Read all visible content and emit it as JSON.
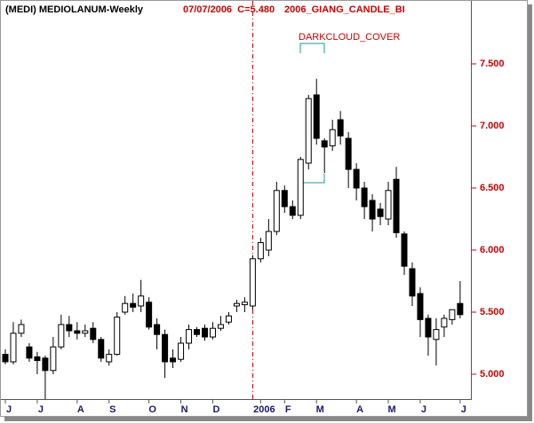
{
  "chart_data": {
    "type": "candlestick",
    "title": "(MEDI) MEDIOLANUM-Weekly",
    "info": "07/07/2006  C=5.480",
    "study": "2006_GIANG_CANDLE_BI",
    "annotation": "DARKCLOUD_COVER",
    "categories": [
      "J",
      null,
      null,
      null,
      "J",
      null,
      null,
      null,
      null,
      "A",
      null,
      null,
      null,
      "S",
      null,
      null,
      null,
      null,
      "O",
      null,
      null,
      null,
      "N",
      null,
      null,
      null,
      "D",
      null,
      null,
      null,
      null,
      null,
      "2006",
      null,
      null,
      "F",
      null,
      null,
      null,
      "M",
      null,
      null,
      null,
      null,
      "A",
      null,
      null,
      null,
      "M",
      null,
      null,
      null,
      "J",
      null,
      null,
      null,
      null,
      "J"
    ],
    "open": [
      5.16,
      5.1,
      5.33,
      5.22,
      5.14,
      5.13,
      5.03,
      5.22,
      5.4,
      5.35,
      5.33,
      5.37,
      5.28,
      5.1,
      5.16,
      5.5,
      5.57,
      5.55,
      5.58,
      5.4,
      5.32,
      5.13,
      5.12,
      5.25,
      5.36,
      5.37,
      5.3,
      5.37,
      5.42,
      5.55,
      5.56,
      5.55,
      5.93,
      6.0,
      6.15,
      6.48,
      6.35,
      6.28,
      6.7,
      7.25,
      6.88,
      6.84,
      7.05,
      6.9,
      6.65,
      6.5,
      6.4,
      6.33,
      6.25,
      6.57,
      6.13,
      5.85,
      5.65,
      5.45,
      5.28,
      5.38,
      5.44,
      5.57
    ],
    "high": [
      5.2,
      5.42,
      5.44,
      5.25,
      5.18,
      5.15,
      5.3,
      5.48,
      5.47,
      5.42,
      5.4,
      5.42,
      5.3,
      5.2,
      5.5,
      5.63,
      5.65,
      5.76,
      5.62,
      5.45,
      5.36,
      5.2,
      5.3,
      5.4,
      5.38,
      5.4,
      5.42,
      5.47,
      5.5,
      5.6,
      5.62,
      5.96,
      6.1,
      6.25,
      6.55,
      6.52,
      6.4,
      6.75,
      7.25,
      7.38,
      6.9,
      7.05,
      7.12,
      6.95,
      6.7,
      6.55,
      6.45,
      6.38,
      6.55,
      6.67,
      6.15,
      5.9,
      5.7,
      5.48,
      5.45,
      5.48,
      5.52,
      5.75
    ],
    "low": [
      5.08,
      5.08,
      5.3,
      5.1,
      5.0,
      4.8,
      5.0,
      5.2,
      5.3,
      5.28,
      5.3,
      5.25,
      5.1,
      5.07,
      5.15,
      5.48,
      5.5,
      5.5,
      5.36,
      5.2,
      4.97,
      5.05,
      5.1,
      5.2,
      5.3,
      5.27,
      5.28,
      5.35,
      5.4,
      5.5,
      5.5,
      5.52,
      5.9,
      5.95,
      6.12,
      6.3,
      6.25,
      6.25,
      6.65,
      6.85,
      6.62,
      6.8,
      6.85,
      6.5,
      6.4,
      6.25,
      6.15,
      6.2,
      6.2,
      6.1,
      5.8,
      5.55,
      5.3,
      5.15,
      5.07,
      5.3,
      5.4,
      5.45
    ],
    "close": [
      5.1,
      5.33,
      5.4,
      5.13,
      5.11,
      5.03,
      5.22,
      5.4,
      5.35,
      5.33,
      5.35,
      5.28,
      5.13,
      5.16,
      5.46,
      5.57,
      5.54,
      5.63,
      5.38,
      5.32,
      5.1,
      5.1,
      5.25,
      5.36,
      5.32,
      5.3,
      5.37,
      5.4,
      5.47,
      5.57,
      5.58,
      5.93,
      6.06,
      6.15,
      6.48,
      6.35,
      6.28,
      6.73,
      7.22,
      6.9,
      6.83,
      6.97,
      6.92,
      6.65,
      6.5,
      6.35,
      6.25,
      6.27,
      6.48,
      6.14,
      5.87,
      5.63,
      5.44,
      5.3,
      5.36,
      5.45,
      5.52,
      5.48
    ],
    "up_color": "#ffffff",
    "down_color": "#000000",
    "ylim": [
      4.8,
      8.0
    ],
    "yticks": [
      {
        "value": 5.0,
        "label": "5.000"
      },
      {
        "value": 5.5,
        "label": "5.500"
      },
      {
        "value": 6.0,
        "label": "6.000"
      },
      {
        "value": 6.5,
        "label": "6.500"
      },
      {
        "value": 7.0,
        "label": "7.000"
      },
      {
        "value": 7.5,
        "label": "7.500"
      }
    ]
  }
}
